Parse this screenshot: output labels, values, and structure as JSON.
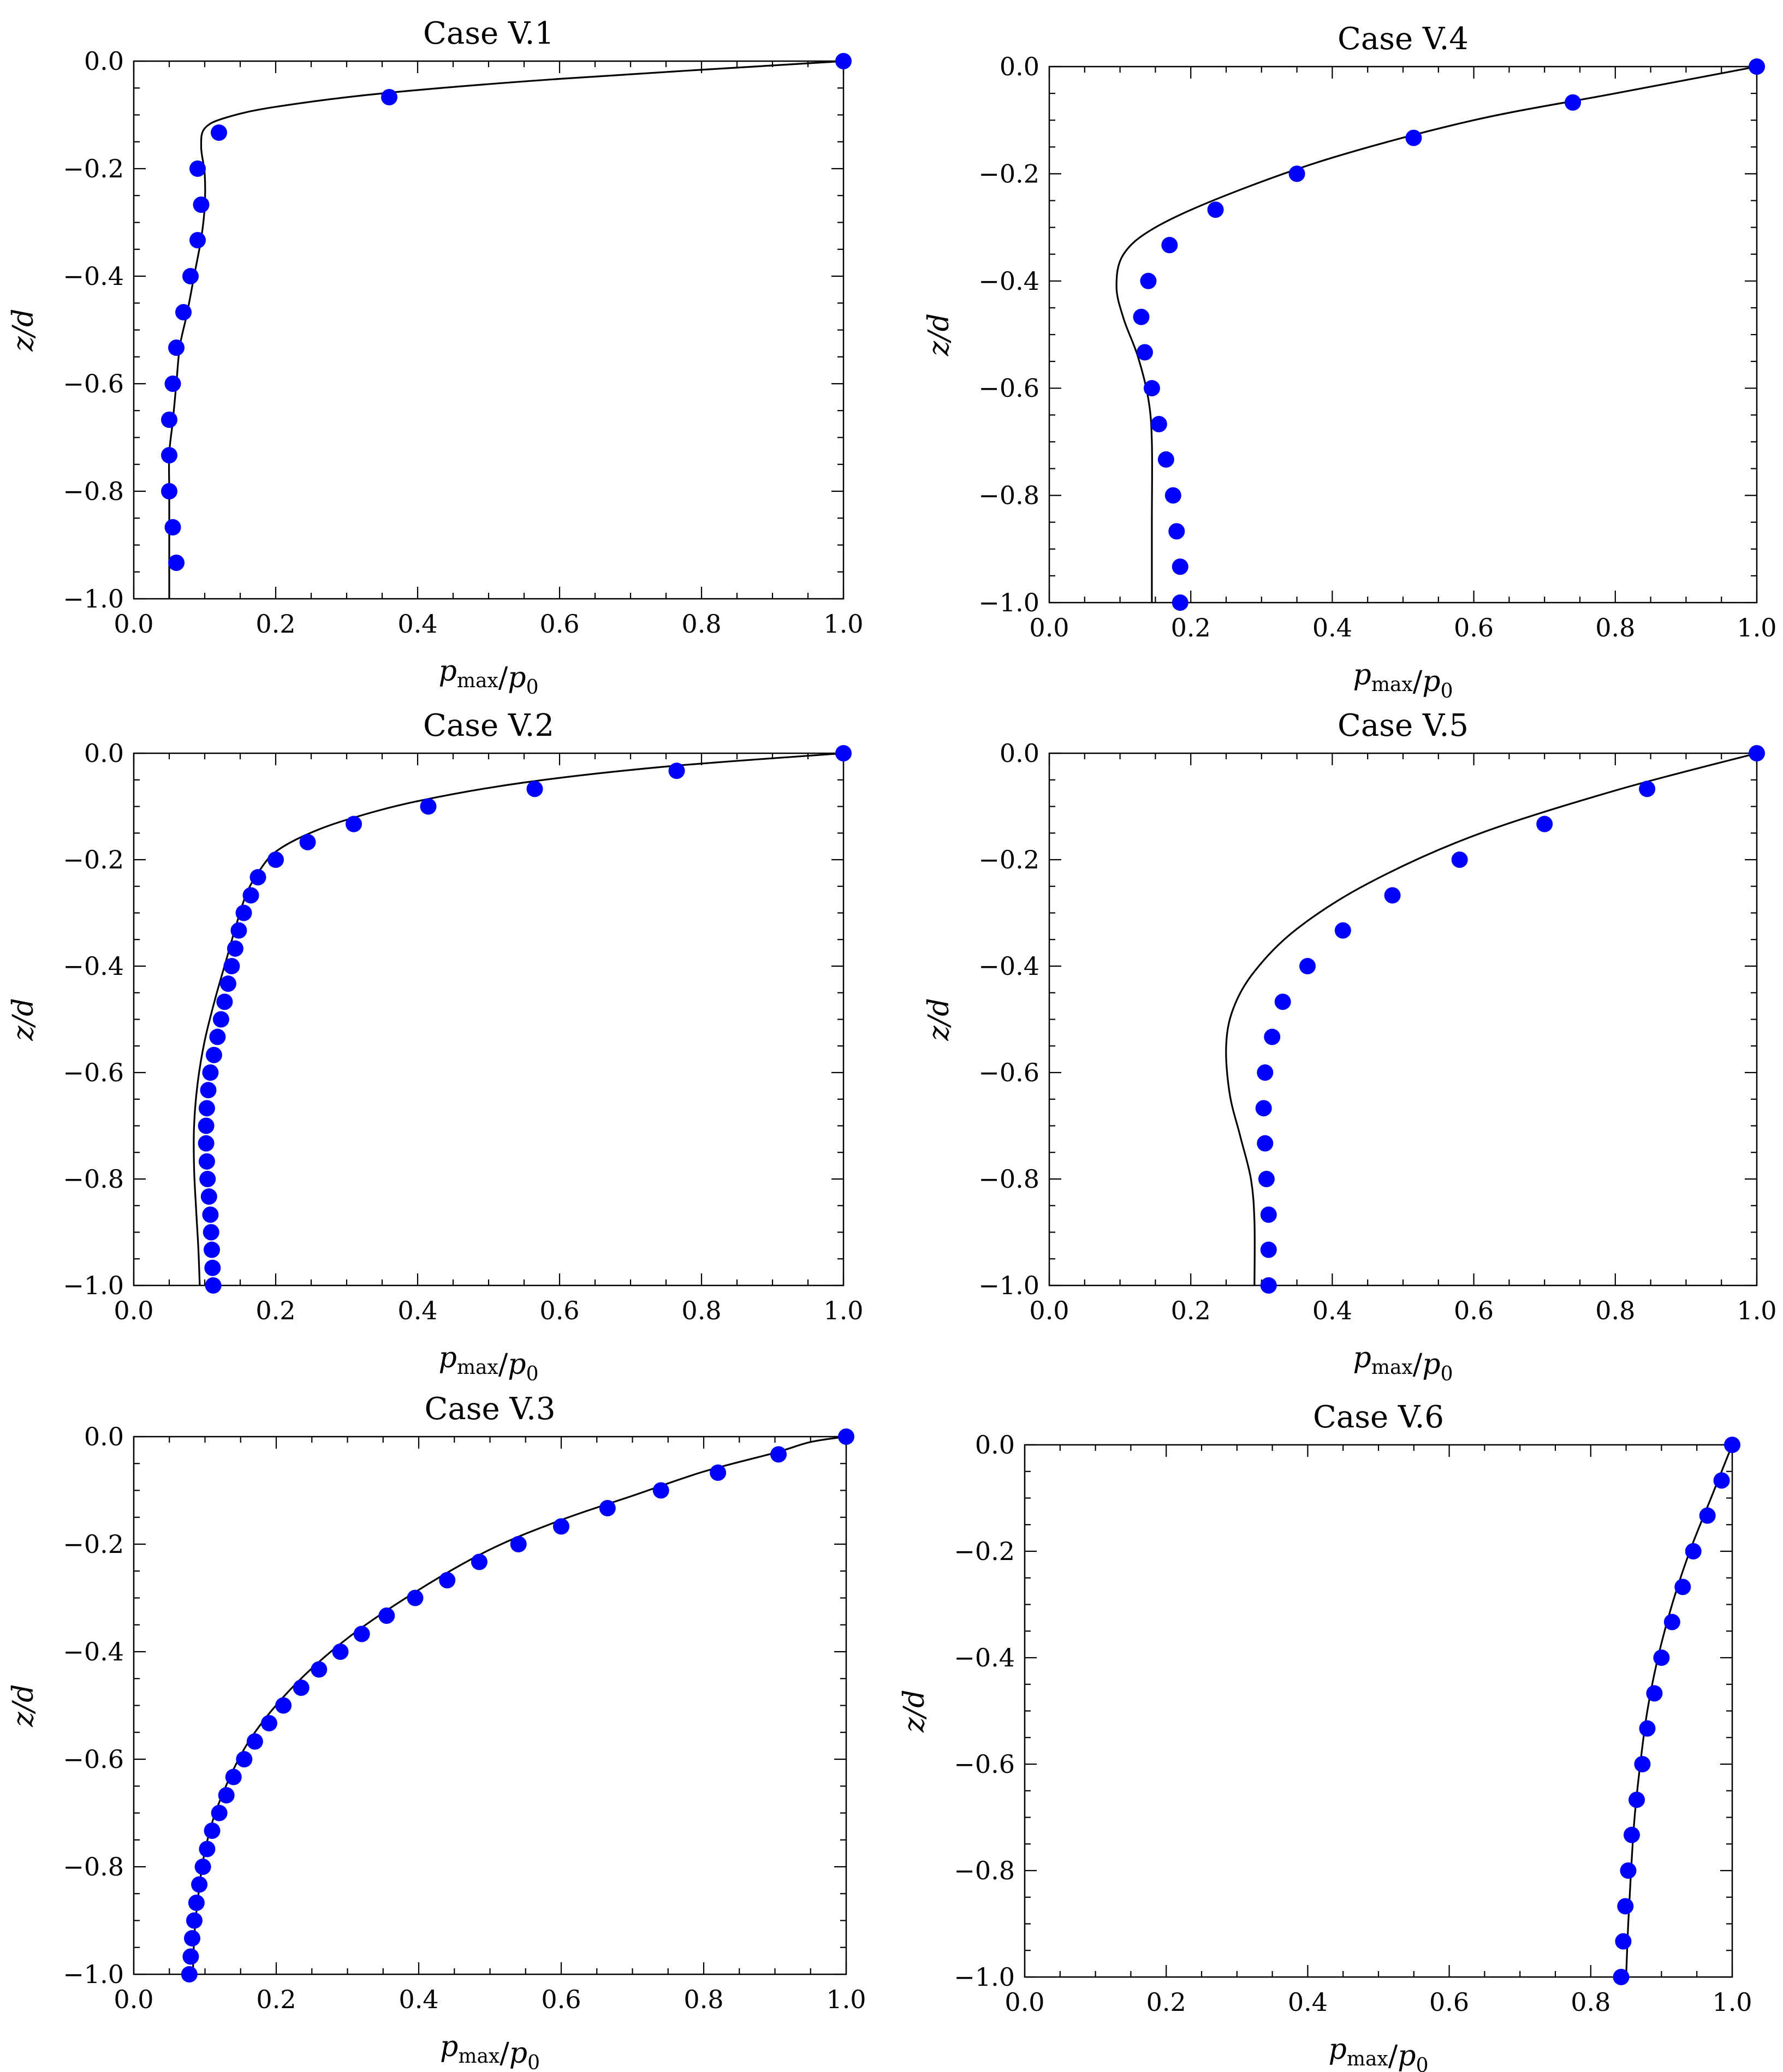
{
  "figure": {
    "series_legend": {
      "model": "solid line",
      "measured": "blue circles"
    },
    "colors": {
      "marker": "#0000ff",
      "line": "#000000",
      "axes": "#000000",
      "background": "#ffffff"
    }
  },
  "chart_data": [
    {
      "type": "scatter+line",
      "title": "Case V.1",
      "xlabel": "p_max/p_0",
      "ylabel": "z/d",
      "xlim": [
        0.0,
        1.0
      ],
      "ylim": [
        -1.0,
        0.0
      ],
      "xticks": [
        "0.0",
        "0.2",
        "0.4",
        "0.6",
        "0.8",
        "1.0"
      ],
      "yticks": [
        "0.0",
        "−0.2",
        "−0.4",
        "−0.6",
        "−0.8",
        "−1.0"
      ],
      "points": [
        [
          1.0,
          0.0
        ],
        [
          0.36,
          -0.067
        ],
        [
          0.12,
          -0.133
        ],
        [
          0.09,
          -0.2
        ],
        [
          0.095,
          -0.267
        ],
        [
          0.09,
          -0.333
        ],
        [
          0.08,
          -0.4
        ],
        [
          0.07,
          -0.467
        ],
        [
          0.06,
          -0.533
        ],
        [
          0.055,
          -0.6
        ],
        [
          0.05,
          -0.667
        ],
        [
          0.05,
          -0.733
        ],
        [
          0.05,
          -0.8
        ],
        [
          0.055,
          -0.867
        ],
        [
          0.06,
          -0.933
        ]
      ],
      "line": [
        [
          1.0,
          0.0
        ],
        [
          0.6,
          -0.033
        ],
        [
          0.35,
          -0.06
        ],
        [
          0.2,
          -0.085
        ],
        [
          0.13,
          -0.105
        ],
        [
          0.1,
          -0.125
        ],
        [
          0.095,
          -0.16
        ],
        [
          0.1,
          -0.21
        ],
        [
          0.1,
          -0.27
        ],
        [
          0.095,
          -0.33
        ],
        [
          0.085,
          -0.4
        ],
        [
          0.075,
          -0.47
        ],
        [
          0.065,
          -0.53
        ],
        [
          0.06,
          -0.6
        ],
        [
          0.055,
          -0.67
        ],
        [
          0.05,
          -0.73
        ],
        [
          0.05,
          -0.8
        ],
        [
          0.05,
          -0.87
        ],
        [
          0.05,
          -1.0
        ]
      ]
    },
    {
      "type": "scatter+line",
      "title": "Case V.2",
      "xlabel": "p_max/p_0",
      "ylabel": "z/d",
      "xlim": [
        0.0,
        1.0
      ],
      "ylim": [
        -1.0,
        0.0
      ],
      "xticks": [
        "0.0",
        "0.2",
        "0.4",
        "0.6",
        "0.8",
        "1.0"
      ],
      "yticks": [
        "0.0",
        "−0.2",
        "−0.4",
        "−0.6",
        "−0.8",
        "−1.0"
      ],
      "points": [
        [
          1.0,
          0.0
        ],
        [
          0.765,
          -0.033
        ],
        [
          0.565,
          -0.067
        ],
        [
          0.415,
          -0.1
        ],
        [
          0.31,
          -0.133
        ],
        [
          0.245,
          -0.167
        ],
        [
          0.2,
          -0.2
        ],
        [
          0.175,
          -0.233
        ],
        [
          0.165,
          -0.267
        ],
        [
          0.155,
          -0.3
        ],
        [
          0.148,
          -0.333
        ],
        [
          0.143,
          -0.367
        ],
        [
          0.138,
          -0.4
        ],
        [
          0.133,
          -0.433
        ],
        [
          0.128,
          -0.467
        ],
        [
          0.123,
          -0.5
        ],
        [
          0.118,
          -0.533
        ],
        [
          0.113,
          -0.567
        ],
        [
          0.108,
          -0.6
        ],
        [
          0.105,
          -0.633
        ],
        [
          0.103,
          -0.667
        ],
        [
          0.102,
          -0.7
        ],
        [
          0.102,
          -0.733
        ],
        [
          0.103,
          -0.767
        ],
        [
          0.104,
          -0.8
        ],
        [
          0.106,
          -0.833
        ],
        [
          0.108,
          -0.867
        ],
        [
          0.109,
          -0.9
        ],
        [
          0.11,
          -0.933
        ],
        [
          0.111,
          -0.967
        ],
        [
          0.112,
          -1.0
        ]
      ],
      "line": [
        [
          1.0,
          0.0
        ],
        [
          0.75,
          -0.025
        ],
        [
          0.55,
          -0.055
        ],
        [
          0.4,
          -0.09
        ],
        [
          0.3,
          -0.125
        ],
        [
          0.24,
          -0.155
        ],
        [
          0.2,
          -0.185
        ],
        [
          0.18,
          -0.215
        ],
        [
          0.16,
          -0.26
        ],
        [
          0.145,
          -0.32
        ],
        [
          0.13,
          -0.39
        ],
        [
          0.115,
          -0.46
        ],
        [
          0.1,
          -0.54
        ],
        [
          0.09,
          -0.62
        ],
        [
          0.085,
          -0.7
        ],
        [
          0.085,
          -0.78
        ],
        [
          0.088,
          -0.86
        ],
        [
          0.091,
          -0.93
        ],
        [
          0.093,
          -1.0
        ]
      ]
    },
    {
      "type": "scatter+line",
      "title": "Case V.3",
      "xlabel": "p_max/p_0",
      "ylabel": "z/d",
      "xlim": [
        0.0,
        1.0
      ],
      "ylim": [
        -1.0,
        0.0
      ],
      "xticks": [
        "0.0",
        "0.2",
        "0.4",
        "0.6",
        "0.8",
        "1.0"
      ],
      "yticks": [
        "0.0",
        "−0.2",
        "−0.4",
        "−0.6",
        "−0.8",
        "−1.0"
      ],
      "points": [
        [
          1.0,
          0.0
        ],
        [
          0.905,
          -0.033
        ],
        [
          0.82,
          -0.067
        ],
        [
          0.74,
          -0.1
        ],
        [
          0.665,
          -0.133
        ],
        [
          0.6,
          -0.167
        ],
        [
          0.54,
          -0.2
        ],
        [
          0.485,
          -0.233
        ],
        [
          0.44,
          -0.267
        ],
        [
          0.395,
          -0.3
        ],
        [
          0.355,
          -0.333
        ],
        [
          0.32,
          -0.367
        ],
        [
          0.29,
          -0.4
        ],
        [
          0.26,
          -0.433
        ],
        [
          0.235,
          -0.467
        ],
        [
          0.21,
          -0.5
        ],
        [
          0.19,
          -0.533
        ],
        [
          0.17,
          -0.567
        ],
        [
          0.155,
          -0.6
        ],
        [
          0.14,
          -0.633
        ],
        [
          0.13,
          -0.667
        ],
        [
          0.12,
          -0.7
        ],
        [
          0.11,
          -0.733
        ],
        [
          0.103,
          -0.767
        ],
        [
          0.097,
          -0.8
        ],
        [
          0.092,
          -0.833
        ],
        [
          0.088,
          -0.867
        ],
        [
          0.085,
          -0.9
        ],
        [
          0.082,
          -0.933
        ],
        [
          0.08,
          -0.967
        ],
        [
          0.078,
          -1.0
        ]
      ],
      "line": [
        [
          1.0,
          0.0
        ],
        [
          0.95,
          -0.01
        ],
        [
          0.9,
          -0.03
        ],
        [
          0.8,
          -0.065
        ],
        [
          0.7,
          -0.11
        ],
        [
          0.6,
          -0.155
        ],
        [
          0.5,
          -0.21
        ],
        [
          0.4,
          -0.285
        ],
        [
          0.3,
          -0.375
        ],
        [
          0.22,
          -0.47
        ],
        [
          0.16,
          -0.57
        ],
        [
          0.12,
          -0.68
        ],
        [
          0.1,
          -0.77
        ],
        [
          0.09,
          -0.86
        ],
        [
          0.085,
          -0.93
        ],
        [
          0.083,
          -1.0
        ]
      ]
    },
    {
      "type": "scatter+line",
      "title": "Case V.4",
      "xlabel": "p_max/p_0",
      "ylabel": "z/d",
      "xlim": [
        0.0,
        1.0
      ],
      "ylim": [
        -1.0,
        0.0
      ],
      "xticks": [
        "0.0",
        "0.2",
        "0.4",
        "0.6",
        "0.8",
        "1.0"
      ],
      "yticks": [
        "0.0",
        "−0.2",
        "−0.4",
        "−0.6",
        "−0.8",
        "−1.0"
      ],
      "points": [
        [
          1.0,
          0.0
        ],
        [
          0.74,
          -0.067
        ],
        [
          0.515,
          -0.133
        ],
        [
          0.35,
          -0.2
        ],
        [
          0.235,
          -0.267
        ],
        [
          0.17,
          -0.333
        ],
        [
          0.14,
          -0.4
        ],
        [
          0.13,
          -0.467
        ],
        [
          0.135,
          -0.533
        ],
        [
          0.145,
          -0.6
        ],
        [
          0.155,
          -0.667
        ],
        [
          0.165,
          -0.733
        ],
        [
          0.175,
          -0.8
        ],
        [
          0.18,
          -0.867
        ],
        [
          0.185,
          -0.933
        ],
        [
          0.185,
          -1.0
        ]
      ],
      "line": [
        [
          1.0,
          0.0
        ],
        [
          0.8,
          -0.05
        ],
        [
          0.6,
          -0.1
        ],
        [
          0.4,
          -0.17
        ],
        [
          0.25,
          -0.24
        ],
        [
          0.15,
          -0.3
        ],
        [
          0.105,
          -0.35
        ],
        [
          0.095,
          -0.41
        ],
        [
          0.105,
          -0.47
        ],
        [
          0.125,
          -0.54
        ],
        [
          0.14,
          -0.62
        ],
        [
          0.145,
          -0.7
        ],
        [
          0.145,
          -0.85
        ],
        [
          0.145,
          -1.0
        ]
      ]
    },
    {
      "type": "scatter+line",
      "title": "Case V.5",
      "xlabel": "p_max/p_0",
      "ylabel": "z/d",
      "xlim": [
        0.0,
        1.0
      ],
      "ylim": [
        -1.0,
        0.0
      ],
      "xticks": [
        "0.0",
        "0.2",
        "0.4",
        "0.6",
        "0.8",
        "1.0"
      ],
      "yticks": [
        "0.0",
        "−0.2",
        "−0.4",
        "−0.6",
        "−0.8",
        "−1.0"
      ],
      "points": [
        [
          1.0,
          0.0
        ],
        [
          0.845,
          -0.067
        ],
        [
          0.7,
          -0.133
        ],
        [
          0.58,
          -0.2
        ],
        [
          0.485,
          -0.267
        ],
        [
          0.415,
          -0.333
        ],
        [
          0.365,
          -0.4
        ],
        [
          0.33,
          -0.467
        ],
        [
          0.315,
          -0.533
        ],
        [
          0.305,
          -0.6
        ],
        [
          0.303,
          -0.667
        ],
        [
          0.305,
          -0.733
        ],
        [
          0.307,
          -0.8
        ],
        [
          0.31,
          -0.867
        ],
        [
          0.31,
          -0.933
        ],
        [
          0.31,
          -1.0
        ]
      ],
      "line": [
        [
          1.0,
          0.0
        ],
        [
          0.8,
          -0.07
        ],
        [
          0.6,
          -0.155
        ],
        [
          0.45,
          -0.245
        ],
        [
          0.35,
          -0.33
        ],
        [
          0.29,
          -0.41
        ],
        [
          0.26,
          -0.48
        ],
        [
          0.25,
          -0.55
        ],
        [
          0.255,
          -0.64
        ],
        [
          0.27,
          -0.72
        ],
        [
          0.285,
          -0.8
        ],
        [
          0.29,
          -0.88
        ],
        [
          0.29,
          -1.0
        ]
      ]
    },
    {
      "type": "scatter+line",
      "title": "Case V.6",
      "xlabel": "p_max/p_0",
      "ylabel": "z/d",
      "xlim": [
        0.0,
        1.0
      ],
      "ylim": [
        -1.0,
        0.0
      ],
      "xticks": [
        "0.0",
        "0.2",
        "0.4",
        "0.6",
        "0.8",
        "1.0"
      ],
      "yticks": [
        "0.0",
        "−0.2",
        "−0.4",
        "−0.6",
        "−0.8",
        "−1.0"
      ],
      "points": [
        [
          1.0,
          0.0
        ],
        [
          0.985,
          -0.067
        ],
        [
          0.965,
          -0.133
        ],
        [
          0.945,
          -0.2
        ],
        [
          0.93,
          -0.267
        ],
        [
          0.915,
          -0.333
        ],
        [
          0.9,
          -0.4
        ],
        [
          0.89,
          -0.467
        ],
        [
          0.88,
          -0.533
        ],
        [
          0.873,
          -0.6
        ],
        [
          0.865,
          -0.667
        ],
        [
          0.858,
          -0.733
        ],
        [
          0.853,
          -0.8
        ],
        [
          0.849,
          -0.867
        ],
        [
          0.846,
          -0.933
        ],
        [
          0.843,
          -1.0
        ]
      ],
      "line": [
        [
          1.0,
          0.0
        ],
        [
          0.97,
          -0.1
        ],
        [
          0.94,
          -0.2
        ],
        [
          0.915,
          -0.3
        ],
        [
          0.895,
          -0.4
        ],
        [
          0.88,
          -0.5
        ],
        [
          0.87,
          -0.6
        ],
        [
          0.862,
          -0.7
        ],
        [
          0.857,
          -0.8
        ],
        [
          0.853,
          -0.9
        ],
        [
          0.85,
          -1.0
        ]
      ]
    }
  ]
}
